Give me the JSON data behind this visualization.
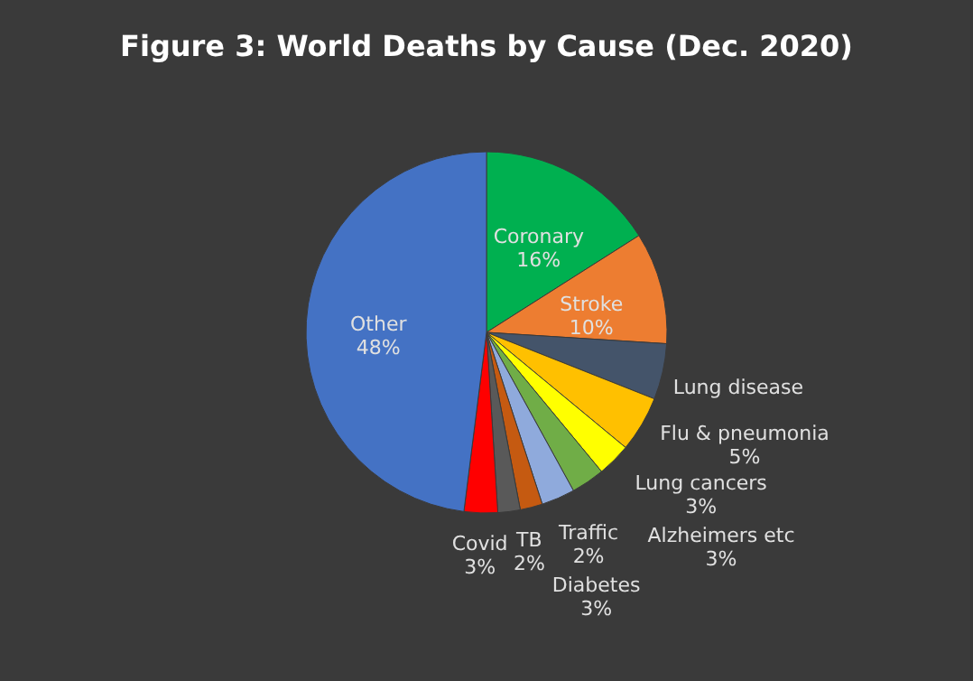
{
  "chart_data": {
    "type": "pie",
    "title": "Figure 3: World Deaths by Cause (Dec. 2020)",
    "categories": [
      "Coronary",
      "Stroke",
      "Lung disease",
      "Flu & pneumonia",
      "Alzheimers etc",
      "Lung cancers",
      "Diabetes",
      "Traffic",
      "TB",
      "Covid",
      "Other"
    ],
    "values": [
      16,
      10,
      5,
      5,
      3,
      3,
      3,
      2,
      2,
      3,
      48
    ],
    "value_labels": [
      "16%",
      "10%",
      null,
      "5%",
      "3%",
      "3%",
      "3%",
      "2%",
      "2%",
      "3%",
      "48%"
    ],
    "colors": [
      "#00b050",
      "#ed7d31",
      "#44546a",
      "#ffc000",
      "#ffff00",
      "#70ad47",
      "#8faadc",
      "#c55a11",
      "#595959",
      "#ff0000",
      "#4472c4"
    ]
  }
}
